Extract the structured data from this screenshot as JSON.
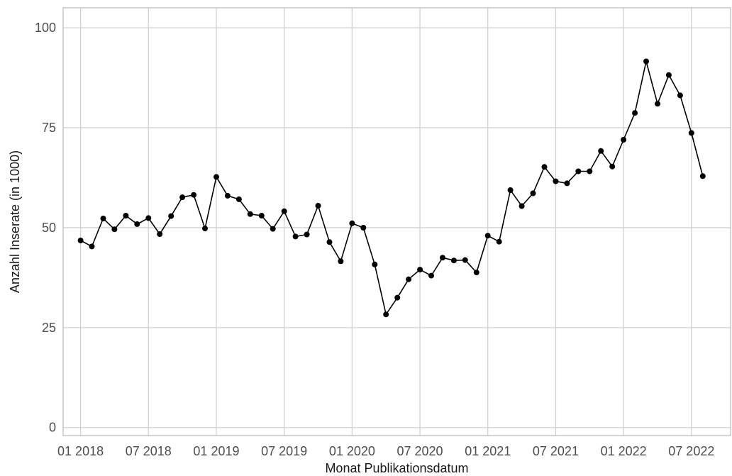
{
  "chart_data": {
    "type": "line",
    "xlabel": "Monat Publikationsdatum",
    "ylabel": "Anzahl Inserate (in 1000)",
    "ylim": [
      -2,
      105
    ],
    "xlim": [
      "2017-11-15",
      "2022-10-15"
    ],
    "grid": true,
    "x_ticks": [
      {
        "date": "2018-01",
        "label": "01 2018"
      },
      {
        "date": "2018-07",
        "label": "07 2018"
      },
      {
        "date": "2019-01",
        "label": "01 2019"
      },
      {
        "date": "2019-07",
        "label": "07 2019"
      },
      {
        "date": "2020-01",
        "label": "01 2020"
      },
      {
        "date": "2020-07",
        "label": "07 2020"
      },
      {
        "date": "2021-01",
        "label": "01 2021"
      },
      {
        "date": "2021-07",
        "label": "07 2021"
      },
      {
        "date": "2022-01",
        "label": "01 2022"
      },
      {
        "date": "2022-07",
        "label": "07 2022"
      }
    ],
    "y_ticks": [
      {
        "value": 0,
        "label": "0"
      },
      {
        "value": 25,
        "label": "25"
      },
      {
        "value": 50,
        "label": "50"
      },
      {
        "value": 75,
        "label": "75"
      },
      {
        "value": 100,
        "label": "100"
      }
    ],
    "series": [
      {
        "x": [
          "2018-01",
          "2018-02",
          "2018-03",
          "2018-04",
          "2018-05",
          "2018-06",
          "2018-07",
          "2018-08",
          "2018-09",
          "2018-10",
          "2018-11",
          "2018-12",
          "2019-01",
          "2019-02",
          "2019-03",
          "2019-04",
          "2019-05",
          "2019-06",
          "2019-07",
          "2019-08",
          "2019-09",
          "2019-10",
          "2019-11",
          "2019-12",
          "2020-01",
          "2020-02",
          "2020-03",
          "2020-04",
          "2020-05",
          "2020-06",
          "2020-07",
          "2020-08",
          "2020-09",
          "2020-10",
          "2020-11",
          "2020-12",
          "2021-01",
          "2021-02",
          "2021-03",
          "2021-04",
          "2021-05",
          "2021-06",
          "2021-07",
          "2021-08",
          "2021-09",
          "2021-10",
          "2021-11",
          "2021-12",
          "2022-01",
          "2022-02",
          "2022-03",
          "2022-04",
          "2022-05",
          "2022-06",
          "2022-07",
          "2022-08"
        ],
        "values": [
          46.8,
          45.3,
          52.3,
          49.6,
          53.0,
          50.9,
          52.4,
          48.4,
          52.9,
          57.6,
          58.2,
          49.8,
          62.7,
          58.0,
          57.1,
          53.4,
          53.0,
          49.7,
          54.1,
          47.8,
          48.3,
          55.5,
          46.4,
          41.6,
          51.1,
          50.0,
          40.8,
          28.3,
          32.5,
          37.1,
          39.5,
          38.0,
          42.5,
          41.8,
          41.9,
          38.8,
          48.0,
          46.5,
          59.4,
          55.4,
          58.6,
          65.2,
          61.6,
          61.1,
          64.1,
          64.1,
          69.2,
          65.3,
          72.0,
          78.7,
          91.6,
          81.0,
          88.2,
          83.1,
          73.7,
          62.9
        ]
      }
    ]
  }
}
